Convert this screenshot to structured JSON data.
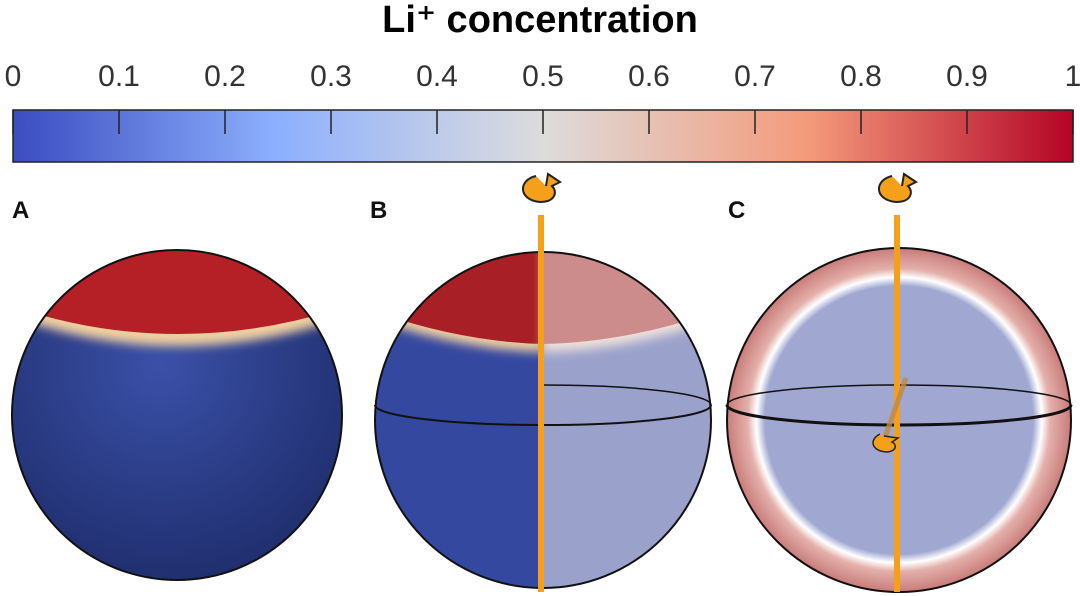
{
  "chart_data": {
    "type": "colorbar",
    "title": "Li⁺ concentration",
    "xlim": [
      0,
      1
    ],
    "xticks": [
      0,
      0.1,
      0.2,
      0.3,
      0.4,
      0.5,
      0.6,
      0.7,
      0.8,
      0.9,
      1
    ],
    "colors": [
      "#3b4cc0",
      "#8db0fe",
      "#dddcdc",
      "#f49a7b",
      "#b40426"
    ]
  },
  "panels": [
    {
      "label": "A"
    },
    {
      "label": "B"
    },
    {
      "label": "C"
    }
  ]
}
